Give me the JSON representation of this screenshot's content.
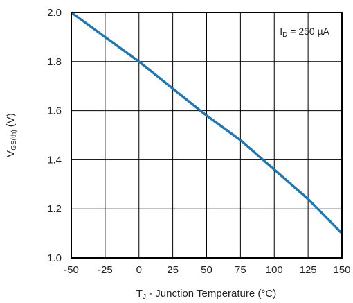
{
  "chart_data": {
    "type": "line",
    "title": "",
    "xlabel": {
      "main": "T",
      "sub": "J",
      "rest": " - Junction Temperature (°C)"
    },
    "ylabel": {
      "main": "V",
      "sub": "GS(th)",
      "rest": " (V)"
    },
    "annotation": {
      "main": "I",
      "sub": "D",
      "rest": " = 250 µA"
    },
    "xlim": [
      -50,
      150
    ],
    "ylim": [
      1.0,
      2.0
    ],
    "xticks": [
      -50,
      -25,
      0,
      25,
      50,
      75,
      100,
      125,
      150
    ],
    "xtick_labels": [
      "-50",
      "-25",
      "0",
      "25",
      "50",
      "75",
      "100",
      "125",
      "150"
    ],
    "yticks": [
      1.0,
      1.2,
      1.4,
      1.6,
      1.8,
      2.0
    ],
    "ytick_labels": [
      "1.0",
      "1.2",
      "1.4",
      "1.6",
      "1.8",
      "2.0"
    ],
    "grid": true,
    "line_color": "#1f78b4",
    "series": [
      {
        "x": [
          -50,
          -25,
          0,
          25,
          50,
          75,
          100,
          125,
          150
        ],
        "y": [
          2.0,
          1.9,
          1.8,
          1.69,
          1.58,
          1.48,
          1.36,
          1.24,
          1.1
        ]
      }
    ]
  }
}
